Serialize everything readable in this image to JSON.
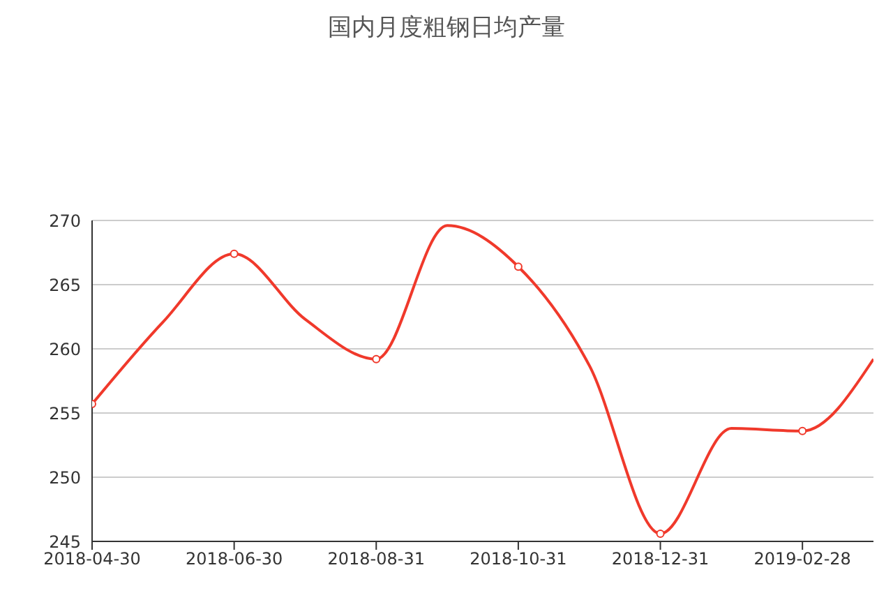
{
  "chart_data": {
    "type": "line",
    "title": "国内月度粗钢日均产量",
    "categories": [
      "2018-04-30",
      null,
      "2018-06-30",
      null,
      "2018-08-31",
      null,
      "2018-10-31",
      null,
      "2018-12-31",
      null,
      "2019-02-28",
      null
    ],
    "series": [
      {
        "color": "#f0392b",
        "values": [
          255.7,
          262.1,
          267.4,
          262.3,
          259.2,
          269.6,
          266.4,
          258.7,
          245.6,
          253.8,
          253.6,
          259.2
        ]
      }
    ],
    "ylim": [
      245,
      270
    ],
    "yticks": [
      245,
      250,
      255,
      260,
      265,
      270
    ],
    "grid": "y",
    "marker": "circle",
    "line_style": "solid"
  }
}
